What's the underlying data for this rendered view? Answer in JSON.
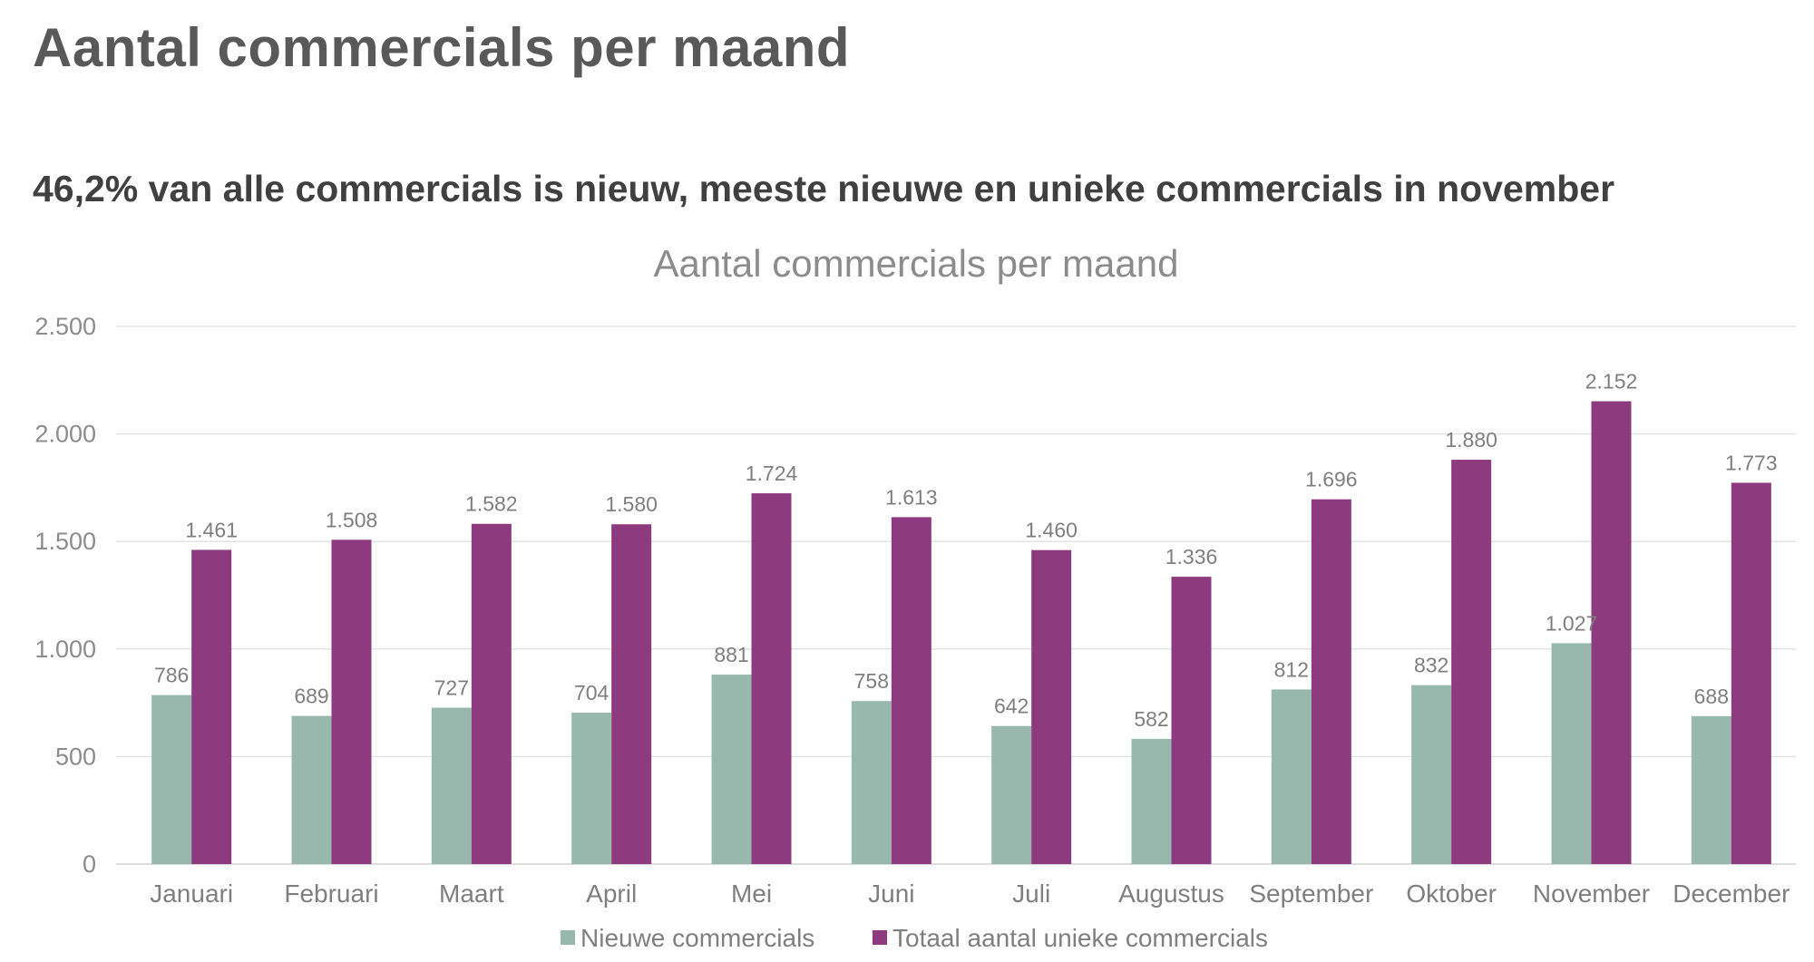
{
  "page": {
    "title": "Aantal commercials per maand",
    "subtitle": "46,2% van alle commercials is nieuw, meeste nieuwe en unieke commercials in november"
  },
  "chart_data": {
    "type": "bar",
    "title": "Aantal commercials per maand",
    "categories": [
      "Januari",
      "Februari",
      "Maart",
      "April",
      "Mei",
      "Juni",
      "Juli",
      "Augustus",
      "September",
      "Oktober",
      "November",
      "December"
    ],
    "series": [
      {
        "name": "Nieuwe commercials",
        "color": "#98b8ad",
        "values": [
          786,
          689,
          727,
          704,
          881,
          758,
          642,
          582,
          812,
          832,
          1027,
          688
        ],
        "labels": [
          "786",
          "689",
          "727",
          "704",
          "881",
          "758",
          "642",
          "582",
          "812",
          "832",
          "1.027",
          "688"
        ]
      },
      {
        "name": "Totaal aantal unieke commercials",
        "color": "#8e3a7e",
        "values": [
          1461,
          1508,
          1582,
          1580,
          1724,
          1613,
          1460,
          1336,
          1696,
          1880,
          2152,
          1773
        ],
        "labels": [
          "1.461",
          "1.508",
          "1.582",
          "1.580",
          "1.724",
          "1.613",
          "1.460",
          "1.336",
          "1.696",
          "1.880",
          "2.152",
          "1.773"
        ]
      }
    ],
    "ylim": [
      0,
      2500
    ],
    "yticks": [
      0,
      500,
      1000,
      1500,
      2000,
      2500
    ],
    "ytick_labels": [
      "0",
      "500",
      "1.000",
      "1.500",
      "2.000",
      "2.500"
    ],
    "grid": true,
    "legend_position": "bottom"
  }
}
